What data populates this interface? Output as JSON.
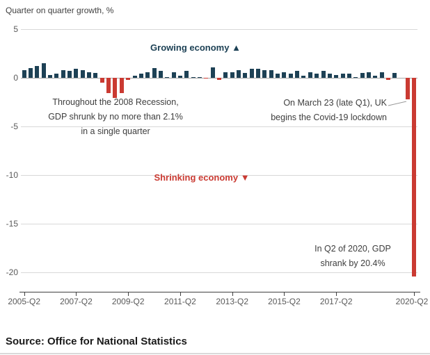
{
  "source": "Source: Office for National Statistics",
  "annotations": {
    "growing": "Growing economy ▲",
    "shrinking": "Shrinking economy ▼",
    "recession": [
      "Throughout the 2008 Recession,",
      "GDP shrunk by no more than 2.1%",
      "in a single quarter"
    ],
    "covid": [
      "On March 23 (late Q1), UK",
      "begins the Covid-19 lockdown"
    ],
    "q2_2020": [
      "In Q2 of 2020, GDP",
      "shrank by 20.4%"
    ]
  },
  "colors": {
    "positive_bar": "#1d4155",
    "negative_bar": "#ca3a32",
    "gridline": "#d8d8d8",
    "zero_line": "#a6a6a6",
    "axis": "#404040",
    "axis_text": "#595959",
    "annotation_text": "#3d3d3d",
    "connector": "#999999"
  },
  "chart_data": {
    "type": "bar",
    "title": "Quarter on quarter growth, %",
    "xlabel": "",
    "ylabel": "Quarter on quarter growth, %",
    "ylim": [
      -22,
      5
    ],
    "yticks": [
      5,
      0,
      -5,
      -10,
      -15,
      -20
    ],
    "grid": "horizontal",
    "legend": "none",
    "x": [
      "2005-Q2",
      "2005-Q3",
      "2005-Q4",
      "2006-Q1",
      "2006-Q2",
      "2006-Q3",
      "2006-Q4",
      "2007-Q1",
      "2007-Q2",
      "2007-Q3",
      "2007-Q4",
      "2008-Q1",
      "2008-Q2",
      "2008-Q3",
      "2008-Q4",
      "2009-Q1",
      "2009-Q2",
      "2009-Q3",
      "2009-Q4",
      "2010-Q1",
      "2010-Q2",
      "2010-Q3",
      "2010-Q4",
      "2011-Q1",
      "2011-Q2",
      "2011-Q3",
      "2011-Q4",
      "2012-Q1",
      "2012-Q2",
      "2012-Q3",
      "2012-Q4",
      "2013-Q1",
      "2013-Q2",
      "2013-Q3",
      "2013-Q4",
      "2014-Q1",
      "2014-Q2",
      "2014-Q3",
      "2014-Q4",
      "2015-Q1",
      "2015-Q2",
      "2015-Q3",
      "2015-Q4",
      "2016-Q1",
      "2016-Q2",
      "2016-Q3",
      "2016-Q4",
      "2017-Q1",
      "2017-Q2",
      "2017-Q3",
      "2017-Q4",
      "2018-Q1",
      "2018-Q2",
      "2018-Q3",
      "2018-Q4",
      "2019-Q1",
      "2019-Q2",
      "2019-Q3",
      "2019-Q4",
      "2020-Q1",
      "2020-Q2"
    ],
    "values": [
      0.8,
      1.0,
      1.2,
      1.5,
      0.3,
      0.4,
      0.8,
      0.7,
      0.9,
      0.8,
      0.6,
      0.5,
      -0.5,
      -1.6,
      -2.1,
      -1.6,
      -0.2,
      0.2,
      0.4,
      0.6,
      1.0,
      0.7,
      0.1,
      0.6,
      0.2,
      0.7,
      0.1,
      0.1,
      -0.1,
      1.1,
      -0.2,
      0.6,
      0.6,
      0.8,
      0.5,
      0.9,
      0.9,
      0.8,
      0.8,
      0.4,
      0.6,
      0.4,
      0.7,
      0.2,
      0.6,
      0.4,
      0.7,
      0.4,
      0.3,
      0.4,
      0.4,
      0.1,
      0.5,
      0.6,
      0.2,
      0.6,
      -0.2,
      0.5,
      0.0,
      -2.2,
      -20.4
    ],
    "xticks": [
      {
        "index": 0,
        "label": "2005-Q2"
      },
      {
        "index": 8,
        "label": "2007-Q2"
      },
      {
        "index": 16,
        "label": "2009-Q2"
      },
      {
        "index": 24,
        "label": "2011-Q2"
      },
      {
        "index": 32,
        "label": "2013-Q2"
      },
      {
        "index": 40,
        "label": "2015-Q2"
      },
      {
        "index": 48,
        "label": "2017-Q2"
      },
      {
        "index": 60,
        "label": "2020-Q2"
      }
    ]
  }
}
